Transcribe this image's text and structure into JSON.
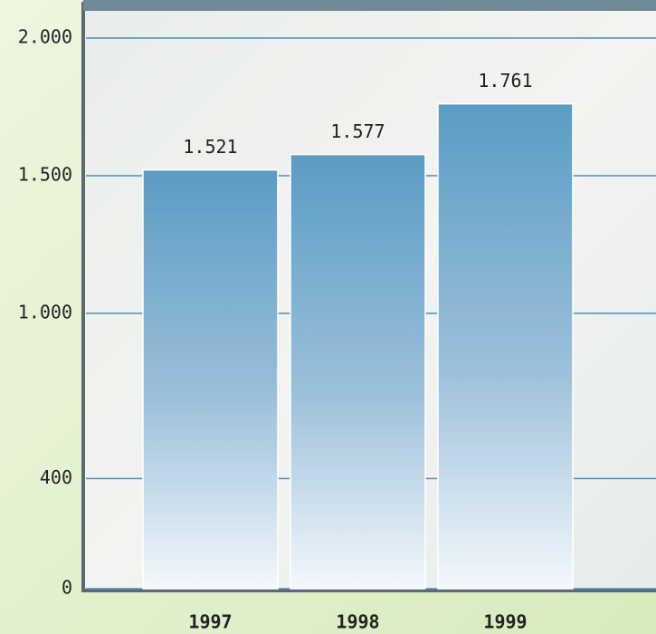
{
  "chart_data": {
    "type": "bar",
    "categories": [
      "1997",
      "1998",
      "1999"
    ],
    "values": [
      1521,
      1577,
      1761
    ],
    "value_labels": [
      "1.521",
      "1.577",
      "1.761"
    ],
    "color": "#5b9cc4",
    "ylim": [
      0,
      2000
    ],
    "yticks": [
      0,
      400,
      {
        "value": 1000,
        "label": "1.000"
      },
      {
        "value": 1500,
        "label": "1.500"
      },
      {
        "value": 2000,
        "label": "2.000"
      }
    ],
    "grid": true
  }
}
